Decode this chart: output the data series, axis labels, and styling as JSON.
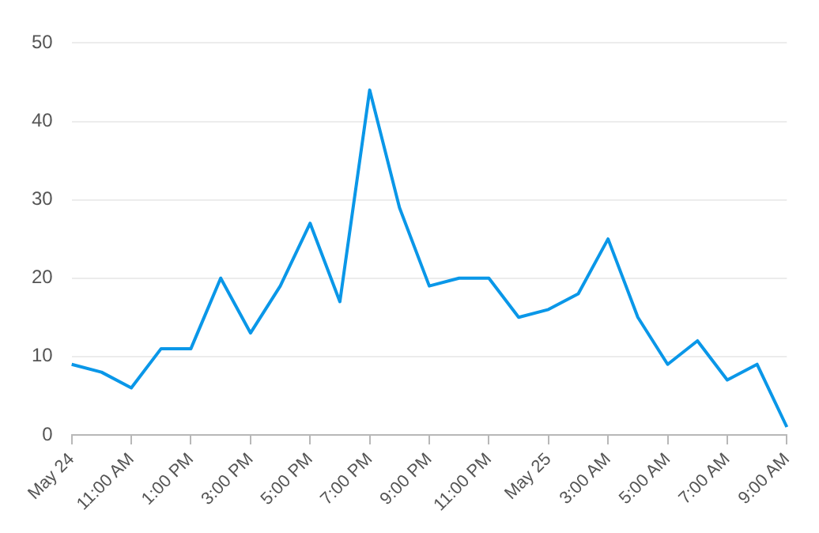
{
  "chart_data": {
    "type": "line",
    "categories": [
      "May 24",
      null,
      "11:00 AM",
      null,
      "1:00 PM",
      null,
      "3:00 PM",
      null,
      "5:00 PM",
      null,
      "7:00 PM",
      null,
      "9:00 PM",
      null,
      "11:00 PM",
      null,
      "May 25",
      null,
      "3:00 AM",
      null,
      "5:00 AM",
      null,
      "7:00 AM",
      null,
      "9:00 AM"
    ],
    "series": [
      {
        "color": "#0a97e8",
        "values": [
          9,
          8,
          6,
          11,
          11,
          20,
          13,
          19,
          27,
          17,
          44,
          29,
          19,
          20,
          20,
          15,
          16,
          18,
          25,
          15,
          9,
          12,
          7,
          9,
          1
        ]
      }
    ],
    "ylim": [
      0,
      50
    ],
    "yticks": [
      0,
      10,
      20,
      30,
      40,
      50
    ],
    "grid": "y",
    "legend": false,
    "marker": "none",
    "line_style": "solid"
  }
}
